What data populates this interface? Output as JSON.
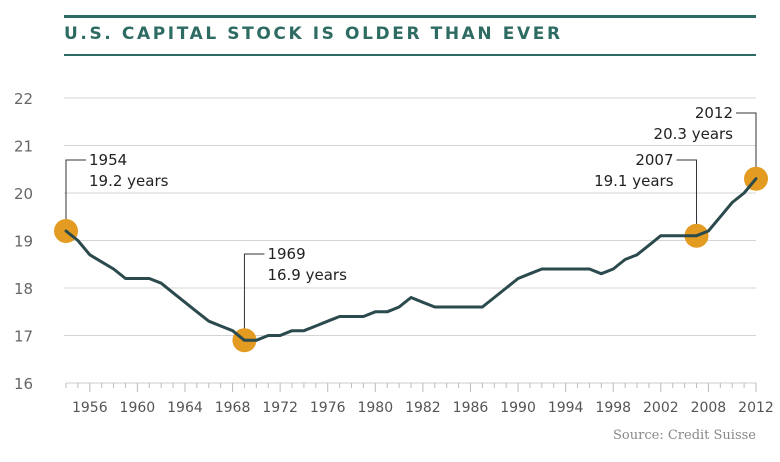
{
  "chart_data": {
    "type": "line",
    "title": "U.S. CAPITAL STOCK IS OLDER THAN EVER",
    "xlabel": "",
    "ylabel": "",
    "ylim": [
      16,
      22
    ],
    "xlim": [
      1954,
      2012
    ],
    "grid": true,
    "yticks": [
      "16",
      "17",
      "18",
      "19",
      "20",
      "21",
      "22"
    ],
    "xtick_labels": [
      "1956",
      "1960",
      "1964",
      "1968",
      "1972",
      "1976",
      "1980",
      "1982",
      "1986",
      "1990",
      "1994",
      "1998",
      "2002",
      "2008",
      "2012"
    ],
    "x": [
      1954,
      1955,
      1956,
      1957,
      1958,
      1959,
      1960,
      1961,
      1962,
      1963,
      1964,
      1965,
      1966,
      1967,
      1968,
      1969,
      1970,
      1971,
      1972,
      1973,
      1974,
      1975,
      1976,
      1977,
      1978,
      1979,
      1980,
      1981,
      1982,
      1983,
      1984,
      1985,
      1986,
      1987,
      1988,
      1989,
      1990,
      1991,
      1992,
      1993,
      1994,
      1995,
      1996,
      1997,
      1998,
      1999,
      2000,
      2001,
      2002,
      2003,
      2004,
      2005,
      2006,
      2007,
      2008,
      2009,
      2010,
      2011,
      2012
    ],
    "series": [
      {
        "name": "Average age of capital stock (years)",
        "color": "#2b4a4d",
        "values": [
          19.2,
          19.0,
          18.7,
          18.55,
          18.4,
          18.2,
          18.2,
          18.2,
          18.1,
          17.9,
          17.7,
          17.5,
          17.3,
          17.2,
          17.1,
          16.9,
          16.9,
          17.0,
          17.0,
          17.1,
          17.1,
          17.2,
          17.3,
          17.4,
          17.4,
          17.4,
          17.5,
          17.5,
          17.6,
          17.8,
          17.7,
          17.6,
          17.6,
          17.6,
          17.6,
          17.6,
          17.8,
          18.0,
          18.2,
          18.3,
          18.4,
          18.4,
          18.4,
          18.4,
          18.4,
          18.3,
          18.4,
          18.6,
          18.7,
          18.9,
          19.1,
          19.1,
          19.1,
          19.1,
          19.2,
          19.5,
          19.8,
          20.0,
          20.3
        ]
      }
    ],
    "annotations": [
      {
        "year": 1954,
        "value": 19.2,
        "label_year": "1954",
        "label_value": "19.2 years"
      },
      {
        "year": 1969,
        "value": 16.9,
        "label_year": "1969",
        "label_value": "16.9 years"
      },
      {
        "year": 2007,
        "value": 19.1,
        "label_year": "2007",
        "label_value": "19.1 years"
      },
      {
        "year": 2012,
        "value": 20.3,
        "label_year": "2012",
        "label_value": "20.3 years"
      }
    ],
    "highlight_color": "#e39b22",
    "source": "Source: Credit Suisse"
  }
}
